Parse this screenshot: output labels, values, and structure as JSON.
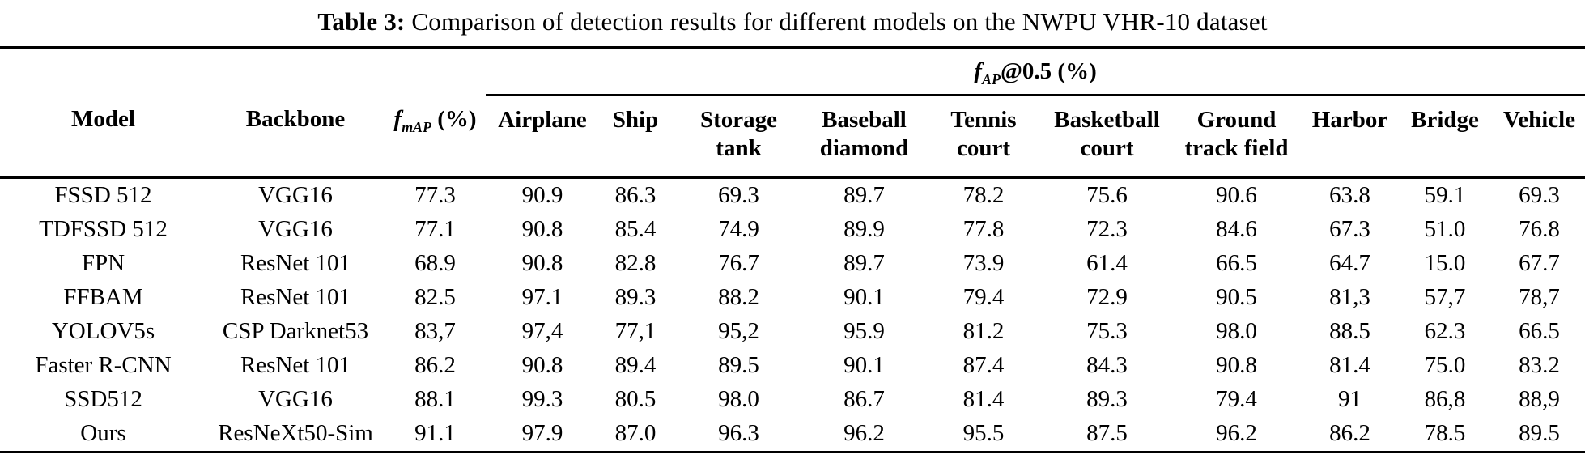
{
  "title": {
    "label": "Table 3:",
    "text": " Comparison of detection results for different models on the NWPU VHR-10 dataset"
  },
  "table": {
    "group_header": {
      "f": "f",
      "sub": "AP",
      "rest": "@0.5 (%)"
    },
    "fixed_columns": [
      {
        "label": "Model"
      },
      {
        "label": "Backbone"
      },
      {
        "f": "f",
        "sub": "mAP",
        "rest": " (%)"
      }
    ],
    "ap_columns": [
      {
        "line1": "Airplane",
        "line2": ""
      },
      {
        "line1": "Ship",
        "line2": ""
      },
      {
        "line1": "Storage",
        "line2": "tank"
      },
      {
        "line1": "Baseball",
        "line2": "diamond"
      },
      {
        "line1": "Tennis",
        "line2": "court"
      },
      {
        "line1": "Basketball",
        "line2": "court"
      },
      {
        "line1": "Ground",
        "line2": "track field"
      },
      {
        "line1": "Harbor",
        "line2": ""
      },
      {
        "line1": "Bridge",
        "line2": ""
      },
      {
        "line1": "Vehicle",
        "line2": ""
      }
    ],
    "rows": [
      [
        "FSSD 512",
        "VGG16",
        "77.3",
        "90.9",
        "86.3",
        "69.3",
        "89.7",
        "78.2",
        "75.6",
        "90.6",
        "63.8",
        "59.1",
        "69.3"
      ],
      [
        "TDFSSD 512",
        "VGG16",
        "77.1",
        "90.8",
        "85.4",
        "74.9",
        "89.9",
        "77.8",
        "72.3",
        "84.6",
        "67.3",
        "51.0",
        "76.8"
      ],
      [
        "FPN",
        "ResNet 101",
        "68.9",
        "90.8",
        "82.8",
        "76.7",
        "89.7",
        "73.9",
        "61.4",
        "66.5",
        "64.7",
        "15.0",
        "67.7"
      ],
      [
        "FFBAM",
        "ResNet 101",
        "82.5",
        "97.1",
        "89.3",
        "88.2",
        "90.1",
        "79.4",
        "72.9",
        "90.5",
        "81,3",
        "57,7",
        "78,7"
      ],
      [
        "YOLOV5s",
        "CSP Darknet53",
        "83,7",
        "97,4",
        "77,1",
        "95,2",
        "95.9",
        "81.2",
        "75.3",
        "98.0",
        "88.5",
        "62.3",
        "66.5"
      ],
      [
        "Faster R-CNN",
        "ResNet 101",
        "86.2",
        "90.8",
        "89.4",
        "89.5",
        "90.1",
        "87.4",
        "84.3",
        "90.8",
        "81.4",
        "75.0",
        "83.2"
      ],
      [
        "SSD512",
        "VGG16",
        "88.1",
        "99.3",
        "80.5",
        "98.0",
        "86.7",
        "81.4",
        "89.3",
        "79.4",
        "91",
        "86,8",
        "88,9"
      ],
      [
        "Ours",
        "ResNeXt50-Sim",
        "91.1",
        "97.9",
        "87.0",
        "96.3",
        "96.2",
        "95.5",
        "87.5",
        "96.2",
        "86.2",
        "78.5",
        "89.5"
      ]
    ]
  }
}
